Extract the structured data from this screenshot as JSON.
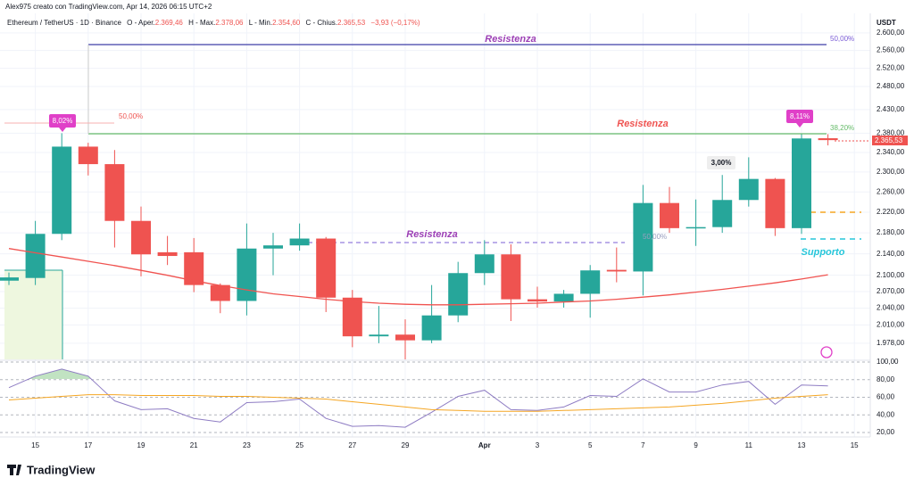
{
  "header": {
    "author_line": "Alex975 creato con TradingView.com, Apr 14, 2026 06:15 UTC+2",
    "symbol": "Ethereum / TetherUS · 1D · Binance",
    "open_label": "O - Aper.",
    "open": "2.369,46",
    "high_label": "H - Max.",
    "high": "2.378,06",
    "low_label": "L - Min.",
    "low": "2.354,60",
    "close_label": "C - Chius.",
    "close": "2.365,53",
    "change": "−3,93 (−0,17%)"
  },
  "annotations": {
    "resistance_top": "Resistenza",
    "resistance_mid": "Resistenza",
    "resistance_low": "Resistenza",
    "support": "Supporto",
    "fib_top": "50,00%",
    "fib_left": "50,00%",
    "fib_mid": "50,00%",
    "fib_right": "38,20%",
    "pct_left": "8,02%",
    "pct_right": "8,11%",
    "pct_mid": "3,00%"
  },
  "currency": "USDT",
  "logo": "TradingView",
  "chart_data": [
    {
      "type": "candlestick",
      "log_scale": true,
      "grid": true,
      "up_color": "#26a69a",
      "down_color": "#ef5350",
      "categories": [
        null,
        "15",
        null,
        "17",
        null,
        "19",
        null,
        "21",
        null,
        "23",
        null,
        "25",
        null,
        "27",
        null,
        "29",
        null,
        null,
        "Apr",
        null,
        "3",
        null,
        "5",
        null,
        "7",
        null,
        "9",
        null,
        "11",
        null,
        "13",
        null,
        "15"
      ],
      "open": [
        2090,
        2095,
        2178,
        2352,
        2316,
        2203,
        2143,
        2143,
        2082,
        2053,
        2150,
        2156,
        2169,
        2059,
        1990,
        1993,
        1983,
        2027,
        2104,
        2139,
        2056,
        2052,
        2066,
        2110,
        2107,
        2238,
        2189,
        2191,
        2244,
        2286,
        2189,
        2369.46,
        null
      ],
      "high": [
        2105,
        2203,
        2380,
        2360,
        2345,
        2231,
        2174,
        2170,
        2085,
        2198,
        2180,
        2198,
        2172,
        2073,
        2044,
        2020,
        2082,
        2125,
        2166,
        2158,
        2079,
        2073,
        2119,
        2152,
        2274,
        2270,
        2245,
        2294,
        2330,
        2288,
        2378,
        2378.06,
        null
      ],
      "low": [
        2082,
        2082,
        2166,
        2293,
        2152,
        2098,
        2119,
        2069,
        2031,
        2027,
        2100,
        2146,
        2033,
        1971,
        1978,
        1950,
        1978,
        2015,
        2082,
        2017,
        2041,
        2041,
        2023,
        2087,
        2063,
        2180,
        2155,
        2180,
        2231,
        2174,
        2178,
        2354.6,
        null
      ],
      "close": [
        2096,
        2178,
        2352,
        2316,
        2203,
        2139,
        2136,
        2082,
        2053,
        2150,
        2156,
        2169,
        2059,
        1990,
        1993,
        1983,
        2027,
        2104,
        2139,
        2056,
        2052,
        2066,
        2109,
        2107,
        2238,
        2189,
        2191,
        2244,
        2286,
        2189,
        2369,
        2365.53,
        null
      ],
      "last_price_label": "2.365,53",
      "overlay": {
        "color": "#f05350",
        "values": [
          2150,
          2142,
          2134,
          2126,
          2118,
          2109,
          2100,
          2090,
          2081,
          2073,
          2066,
          2061,
          2056,
          2052,
          2049,
          2047,
          2046,
          2046,
          2047,
          2048,
          2049,
          2051,
          2053,
          2056,
          2060,
          2064,
          2069,
          2074,
          2080,
          2086,
          2093,
          2101,
          null
        ]
      },
      "ylim": [
        1950,
        2645
      ],
      "yticks": [
        {
          "value": 2600,
          "label": "2.600,00"
        },
        {
          "value": 2560,
          "label": "2.560,00"
        },
        {
          "value": 2520,
          "label": "2.520,00"
        },
        {
          "value": 2480,
          "label": "2.480,00"
        },
        {
          "value": 2430,
          "label": "2.430,00"
        },
        {
          "value": 2380,
          "label": "2.380,00"
        },
        {
          "value": 2340,
          "label": "2.340,00"
        },
        {
          "value": 2300,
          "label": "2.300,00"
        },
        {
          "value": 2260,
          "label": "2.260,00"
        },
        {
          "value": 2220,
          "label": "2.220,00"
        },
        {
          "value": 2180,
          "label": "2.180,00"
        },
        {
          "value": 2140,
          "label": "2.140,00"
        },
        {
          "value": 2100,
          "label": "2.100,00"
        },
        {
          "value": 2070,
          "label": "2.070,00"
        },
        {
          "value": 2040,
          "label": "2.040,00"
        },
        {
          "value": 2010,
          "label": "2.010,00"
        },
        {
          "value": 1978,
          "label": "1.978,00"
        }
      ]
    },
    {
      "type": "line",
      "grid": true,
      "series": [
        {
          "color": "#8e7cc3",
          "values": [
            71,
            84,
            92,
            84,
            56,
            46,
            47,
            36,
            32,
            54,
            55,
            58,
            36,
            27,
            28,
            26,
            43,
            61,
            68,
            46,
            45,
            49,
            62,
            61,
            81,
            66,
            66,
            74,
            78,
            52,
            74,
            73,
            null
          ]
        },
        {
          "color": "#f5a623",
          "values": [
            57,
            59,
            61,
            63,
            63,
            62,
            62,
            62,
            61,
            61,
            60,
            59,
            58,
            55,
            52,
            49,
            46,
            45,
            44,
            44,
            44,
            45,
            46,
            47,
            48,
            49,
            51,
            53,
            56,
            59,
            61,
            63,
            null
          ]
        }
      ],
      "ylim": [
        15,
        101
      ],
      "yticks": [
        {
          "value": 20,
          "label": "20,00"
        },
        {
          "value": 40,
          "label": "40,00"
        },
        {
          "value": 60,
          "label": "60,00"
        },
        {
          "value": 80,
          "label": "80,00"
        },
        {
          "value": 100,
          "label": "100,00"
        }
      ]
    }
  ]
}
